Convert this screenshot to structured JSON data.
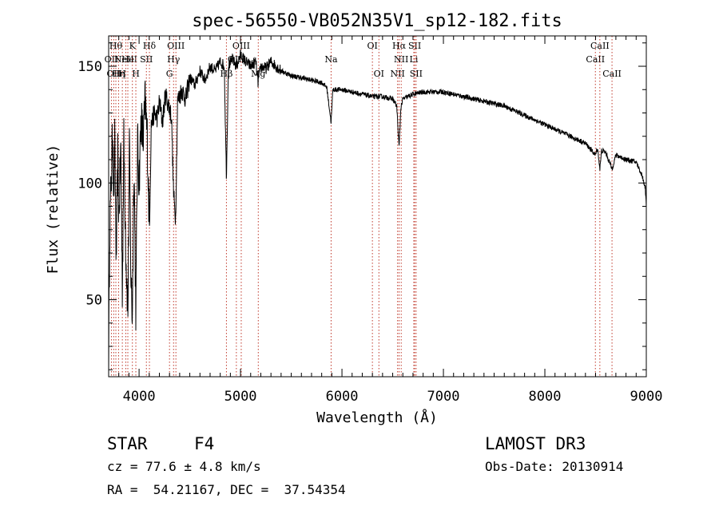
{
  "chart_data": {
    "type": "line",
    "title": "spec-56550-VB052N35V1_sp12-182.fits",
    "xlabel": "Wavelength (Å)",
    "ylabel": "Flux (relative)",
    "xlim": [
      3700,
      9000
    ],
    "ylim": [
      17,
      163
    ],
    "x_ticks": [
      4000,
      5000,
      6000,
      7000,
      8000,
      9000
    ],
    "x_tick_labels": [
      "4000",
      "5000",
      "6000",
      "7000",
      "8000",
      "9000"
    ],
    "y_ticks": [
      50,
      100,
      150
    ],
    "y_tick_labels": [
      "50",
      "100",
      "150"
    ],
    "series": [
      {
        "name": "flux",
        "anchors": [
          [
            3700,
            22
          ],
          [
            3710,
            80
          ],
          [
            3725,
            100
          ],
          [
            3740,
            122
          ],
          [
            3750,
            95
          ],
          [
            3760,
            118
          ],
          [
            3775,
            65
          ],
          [
            3790,
            112
          ],
          [
            3800,
            85
          ],
          [
            3820,
            115
          ],
          [
            3835,
            55
          ],
          [
            3850,
            118
          ],
          [
            3870,
            70
          ],
          [
            3890,
            45
          ],
          [
            3905,
            115
          ],
          [
            3920,
            60
          ],
          [
            3933,
            42
          ],
          [
            3950,
            110
          ],
          [
            3968,
            45
          ],
          [
            3985,
            118
          ],
          [
            4000,
            100
          ],
          [
            4020,
            128
          ],
          [
            4040,
            118
          ],
          [
            4060,
            135
          ],
          [
            4080,
            120
          ],
          [
            4102,
            80
          ],
          [
            4120,
            125
          ],
          [
            4150,
            130
          ],
          [
            4180,
            128
          ],
          [
            4200,
            135
          ],
          [
            4230,
            126
          ],
          [
            4260,
            138
          ],
          [
            4300,
            132
          ],
          [
            4320,
            128
          ],
          [
            4340,
            95
          ],
          [
            4360,
            85
          ],
          [
            4380,
            135
          ],
          [
            4420,
            140
          ],
          [
            4460,
            136
          ],
          [
            4500,
            145
          ],
          [
            4550,
            142
          ],
          [
            4600,
            148
          ],
          [
            4650,
            144
          ],
          [
            4700,
            150
          ],
          [
            4750,
            148
          ],
          [
            4800,
            152
          ],
          [
            4840,
            150
          ],
          [
            4861,
            102
          ],
          [
            4880,
            150
          ],
          [
            4920,
            153
          ],
          [
            4960,
            150
          ],
          [
            5000,
            155
          ],
          [
            5050,
            152
          ],
          [
            5100,
            150
          ],
          [
            5150,
            152
          ],
          [
            5172,
            143
          ],
          [
            5200,
            150
          ],
          [
            5250,
            149
          ],
          [
            5300,
            152
          ],
          [
            5400,
            148
          ],
          [
            5500,
            146
          ],
          [
            5600,
            145
          ],
          [
            5700,
            144
          ],
          [
            5800,
            143
          ],
          [
            5850,
            141
          ],
          [
            5893,
            126
          ],
          [
            5910,
            140
          ],
          [
            6000,
            140
          ],
          [
            6100,
            139
          ],
          [
            6200,
            138
          ],
          [
            6300,
            137
          ],
          [
            6400,
            137
          ],
          [
            6500,
            136
          ],
          [
            6540,
            133
          ],
          [
            6563,
            115
          ],
          [
            6580,
            132
          ],
          [
            6600,
            136
          ],
          [
            6700,
            138
          ],
          [
            6800,
            139
          ],
          [
            6900,
            139
          ],
          [
            7000,
            139
          ],
          [
            7100,
            138
          ],
          [
            7200,
            137
          ],
          [
            7300,
            136
          ],
          [
            7400,
            135
          ],
          [
            7500,
            134
          ],
          [
            7600,
            133
          ],
          [
            7700,
            131
          ],
          [
            7800,
            129
          ],
          [
            7900,
            127
          ],
          [
            8000,
            125
          ],
          [
            8100,
            123
          ],
          [
            8200,
            121
          ],
          [
            8300,
            119
          ],
          [
            8400,
            117
          ],
          [
            8498,
            112
          ],
          [
            8520,
            115
          ],
          [
            8542,
            106
          ],
          [
            8560,
            114
          ],
          [
            8600,
            113
          ],
          [
            8662,
            106
          ],
          [
            8700,
            112
          ],
          [
            8800,
            110
          ],
          [
            8900,
            109
          ],
          [
            8960,
            103
          ],
          [
            8990,
            98
          ],
          [
            9000,
            90
          ]
        ]
      }
    ],
    "lines": [
      {
        "wavelength": 3727,
        "label": "OII",
        "row": 2
      },
      {
        "wavelength": 3750,
        "label": "OII",
        "row": 3
      },
      {
        "wavelength": 3771,
        "label": "Hθ",
        "row": 1
      },
      {
        "wavelength": 3798,
        "label": "Hη",
        "row": 3
      },
      {
        "wavelength": 3835,
        "label": "H",
        "row": 3
      },
      {
        "wavelength": 3869,
        "label": "NeIII",
        "row": 2
      },
      {
        "wavelength": 3889,
        "label": "He",
        "row": 2
      },
      {
        "wavelength": 3934,
        "label": "K",
        "row": 1
      },
      {
        "wavelength": 3968,
        "label": "H",
        "row": 3
      },
      {
        "wavelength": 4072,
        "label": "SII",
        "row": 2
      },
      {
        "wavelength": 4102,
        "label": "Hδ",
        "row": 1
      },
      {
        "wavelength": 4300,
        "label": "G",
        "row": 3
      },
      {
        "wavelength": 4340,
        "label": "Hγ",
        "row": 2
      },
      {
        "wavelength": 4363,
        "label": "OIII",
        "row": 1
      },
      {
        "wavelength": 4861,
        "label": "Hβ",
        "row": 3
      },
      {
        "wavelength": 4959,
        "label": "OIII",
        "row": 2
      },
      {
        "wavelength": 5007,
        "label": "OIII",
        "row": 1
      },
      {
        "wavelength": 5175,
        "label": "Mg",
        "row": 3
      },
      {
        "wavelength": 5893,
        "label": "Na",
        "row": 2
      },
      {
        "wavelength": 6300,
        "label": "OI",
        "row": 1
      },
      {
        "wavelength": 6364,
        "label": "OI",
        "row": 3
      },
      {
        "wavelength": 6548,
        "label": "NII",
        "row": 3
      },
      {
        "wavelength": 6563,
        "label": "Hα",
        "row": 1
      },
      {
        "wavelength": 6584,
        "label": "NII",
        "row": 2
      },
      {
        "wavelength": 6708,
        "label": "Li",
        "row": 2
      },
      {
        "wavelength": 6717,
        "label": "SII",
        "row": 1
      },
      {
        "wavelength": 6731,
        "label": "SII",
        "row": 3
      },
      {
        "wavelength": 8498,
        "label": "CaII",
        "row": 2
      },
      {
        "wavelength": 8542,
        "label": "CaII",
        "row": 1
      },
      {
        "wavelength": 8662,
        "label": "CaII",
        "row": 3
      }
    ]
  },
  "info": {
    "class": "STAR",
    "subclass": "F4",
    "cz": "cz = 77.6 ± 4.8 km/s",
    "coords": "RA =  54.21167, DEC =  37.54354",
    "survey": "LAMOST DR3",
    "obs_date": "Obs-Date: 20130914"
  }
}
